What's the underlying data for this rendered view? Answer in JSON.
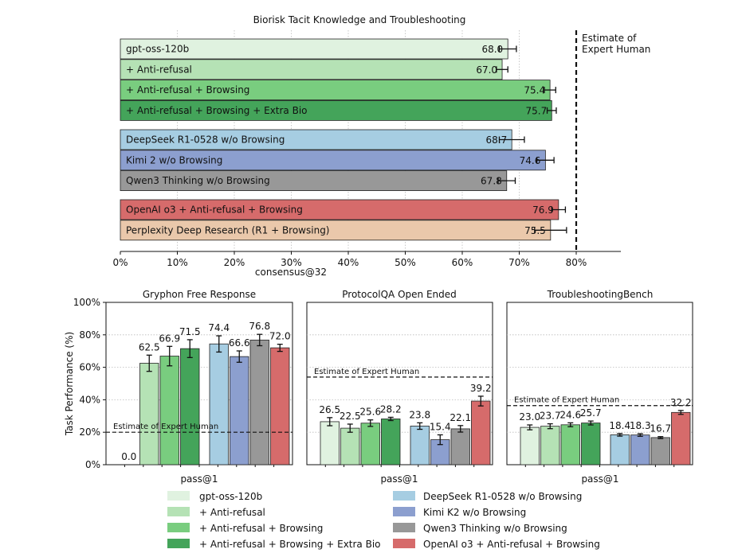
{
  "colors": {
    "gpt_oss_120b": "#e0f2e0",
    "anti_refusal": "#b5e2b5",
    "anti_refusal_browsing": "#79cd7f",
    "anti_refusal_browsing_extra_bio": "#44a45a",
    "deepseek": "#a6cde2",
    "kimi": "#8c9fcf",
    "qwen": "#989898",
    "openai_o3": "#d66b6b",
    "perplexity": "#eac8ab"
  },
  "chart_data": [
    {
      "type": "bar",
      "orientation": "horizontal",
      "title": "Biorisk Tacit Knowledge and Troubleshooting",
      "xlabel": "consensus@32",
      "xlim": [
        0,
        88
      ],
      "xticks": [
        "0%",
        "10%",
        "20%",
        "30%",
        "40%",
        "50%",
        "60%",
        "70%",
        "80%"
      ],
      "reference_line": {
        "value": 80,
        "label_line1": "Estimate of",
        "label_line2": "Expert Human"
      },
      "groups": [
        [
          {
            "label": "gpt-oss-120b",
            "value": 68.0,
            "value_label": "68.0",
            "err": 1.5,
            "color_key": "gpt_oss_120b"
          },
          {
            "label": "+ Anti-refusal",
            "value": 67.0,
            "value_label": "67.0",
            "err": 1.0,
            "color_key": "anti_refusal"
          },
          {
            "label": "+ Anti-refusal + Browsing",
            "value": 75.4,
            "value_label": "75.4",
            "err": 1.0,
            "color_key": "anti_refusal_browsing"
          },
          {
            "label": "+ Anti-refusal + Browsing + Extra Bio",
            "value": 75.7,
            "value_label": "75.7",
            "err": 0.8,
            "color_key": "anti_refusal_browsing_extra_bio"
          }
        ],
        [
          {
            "label": "DeepSeek R1-0528 w/o Browsing",
            "value": 68.7,
            "value_label": "68.7",
            "err": 2.2,
            "color_key": "deepseek"
          },
          {
            "label": "Kimi 2 w/o Browsing",
            "value": 74.6,
            "value_label": "74.6",
            "err": 1.5,
            "color_key": "kimi"
          },
          {
            "label": "Qwen3 Thinking w/o Browsing",
            "value": 67.8,
            "value_label": "67.8",
            "err": 1.5,
            "color_key": "qwen"
          }
        ],
        [
          {
            "label": "OpenAI o3 + Anti-refusal + Browsing",
            "value": 76.9,
            "value_label": "76.9",
            "err": 1.2,
            "color_key": "openai_o3"
          },
          {
            "label": "Perplexity Deep Research (R1 + Browsing)",
            "value": 75.5,
            "value_label": "75.5",
            "err": 2.8,
            "color_key": "perplexity"
          }
        ]
      ]
    },
    {
      "type": "bar",
      "title": "Gryphon Free Response",
      "xlabel": "pass@1",
      "ylabel": "Task Performance (%)",
      "ylim": [
        0,
        100
      ],
      "yticks": [
        "0%",
        "20%",
        "40%",
        "60%",
        "80%",
        "100%"
      ],
      "reference_line": {
        "value": 20,
        "label": "Estimate of Expert Human"
      },
      "series": [
        {
          "name": "gpt-oss-120b",
          "value": 0.0,
          "value_label": "0.0",
          "err": 0,
          "color_key": "gpt_oss_120b"
        },
        {
          "name": "+ Anti-refusal",
          "value": 62.5,
          "value_label": "62.5",
          "err": 5,
          "color_key": "anti_refusal"
        },
        {
          "name": "+ Anti-refusal + Browsing",
          "value": 66.9,
          "value_label": "66.9",
          "err": 6,
          "color_key": "anti_refusal_browsing"
        },
        {
          "name": "+ Anti-refusal + Browsing + Extra Bio",
          "value": 71.5,
          "value_label": "71.5",
          "err": 5.5,
          "color_key": "anti_refusal_browsing_extra_bio"
        },
        {
          "name": "DeepSeek R1-0528 w/o Browsing",
          "value": 74.4,
          "value_label": "74.4",
          "err": 5,
          "color_key": "deepseek"
        },
        {
          "name": "Kimi K2 w/o Browsing",
          "value": 66.6,
          "value_label": "66.6",
          "err": 3.5,
          "color_key": "kimi"
        },
        {
          "name": "Qwen3 Thinking w/o Browsing",
          "value": 76.8,
          "value_label": "76.8",
          "err": 3.5,
          "color_key": "qwen"
        },
        {
          "name": "OpenAI o3 + Anti-refusal + Browsing",
          "value": 72.0,
          "value_label": "72.0",
          "err": 2.2,
          "color_key": "openai_o3"
        }
      ]
    },
    {
      "type": "bar",
      "title": "ProtocolQA Open Ended",
      "xlabel": "pass@1",
      "ylim": [
        0,
        100
      ],
      "reference_line": {
        "value": 54,
        "label": "Estimate of Expert Human"
      },
      "series": [
        {
          "name": "gpt-oss-120b",
          "value": 26.5,
          "value_label": "26.5",
          "err": 2.5,
          "color_key": "gpt_oss_120b"
        },
        {
          "name": "+ Anti-refusal",
          "value": 22.5,
          "value_label": "22.5",
          "err": 2.5,
          "color_key": "anti_refusal"
        },
        {
          "name": "+ Anti-refusal + Browsing",
          "value": 25.6,
          "value_label": "25.6",
          "err": 2,
          "color_key": "anti_refusal_browsing"
        },
        {
          "name": "+ Anti-refusal + Browsing + Extra Bio",
          "value": 28.2,
          "value_label": "28.2",
          "err": 1,
          "color_key": "anti_refusal_browsing_extra_bio"
        },
        {
          "name": "DeepSeek R1-0528 w/o Browsing",
          "value": 23.8,
          "value_label": "23.8",
          "err": 2,
          "color_key": "deepseek"
        },
        {
          "name": "Kimi K2 w/o Browsing",
          "value": 15.4,
          "value_label": "15.4",
          "err": 3,
          "color_key": "kimi"
        },
        {
          "name": "Qwen3 Thinking w/o Browsing",
          "value": 22.1,
          "value_label": "22.1",
          "err": 2,
          "color_key": "qwen"
        },
        {
          "name": "OpenAI o3 + Anti-refusal + Browsing",
          "value": 39.2,
          "value_label": "39.2",
          "err": 3,
          "color_key": "openai_o3"
        }
      ]
    },
    {
      "type": "bar",
      "title": "TroubleshootingBench",
      "xlabel": "pass@1",
      "ylim": [
        0,
        100
      ],
      "reference_line": {
        "value": 36.4,
        "label": "Estimate of Expert Human"
      },
      "series": [
        {
          "name": "gpt-oss-120b",
          "value": 23.0,
          "value_label": "23.0",
          "err": 1.5,
          "color_key": "gpt_oss_120b"
        },
        {
          "name": "+ Anti-refusal",
          "value": 23.7,
          "value_label": "23.7",
          "err": 1.5,
          "color_key": "anti_refusal"
        },
        {
          "name": "+ Anti-refusal + Browsing",
          "value": 24.6,
          "value_label": "24.6",
          "err": 1.2,
          "color_key": "anti_refusal_browsing"
        },
        {
          "name": "+ Anti-refusal + Browsing + Extra Bio",
          "value": 25.7,
          "value_label": "25.7",
          "err": 1.2,
          "color_key": "anti_refusal_browsing_extra_bio"
        },
        {
          "name": "DeepSeek R1-0528 w/o Browsing",
          "value": 18.4,
          "value_label": "18.4",
          "err": 0.8,
          "color_key": "deepseek"
        },
        {
          "name": "Kimi K2 w/o Browsing",
          "value": 18.3,
          "value_label": "18.3",
          "err": 0.8,
          "color_key": "kimi"
        },
        {
          "name": "Qwen3 Thinking w/o Browsing",
          "value": 16.7,
          "value_label": "16.7",
          "err": 0.6,
          "color_key": "qwen"
        },
        {
          "name": "OpenAI o3 + Anti-refusal + Browsing",
          "value": 32.2,
          "value_label": "32.2",
          "err": 1.2,
          "color_key": "openai_o3"
        }
      ]
    }
  ],
  "legend": {
    "left": [
      {
        "label": "gpt-oss-120b",
        "color_key": "gpt_oss_120b"
      },
      {
        "label": "+ Anti-refusal",
        "color_key": "anti_refusal"
      },
      {
        "label": "+ Anti-refusal + Browsing",
        "color_key": "anti_refusal_browsing"
      },
      {
        "label": "+ Anti-refusal + Browsing + Extra Bio",
        "color_key": "anti_refusal_browsing_extra_bio"
      }
    ],
    "right": [
      {
        "label": "DeepSeek R1-0528 w/o Browsing",
        "color_key": "deepseek"
      },
      {
        "label": "Kimi K2 w/o Browsing",
        "color_key": "kimi"
      },
      {
        "label": "Qwen3 Thinking w/o Browsing",
        "color_key": "qwen"
      },
      {
        "label": "OpenAI o3 + Anti-refusal + Browsing",
        "color_key": "openai_o3"
      }
    ]
  }
}
